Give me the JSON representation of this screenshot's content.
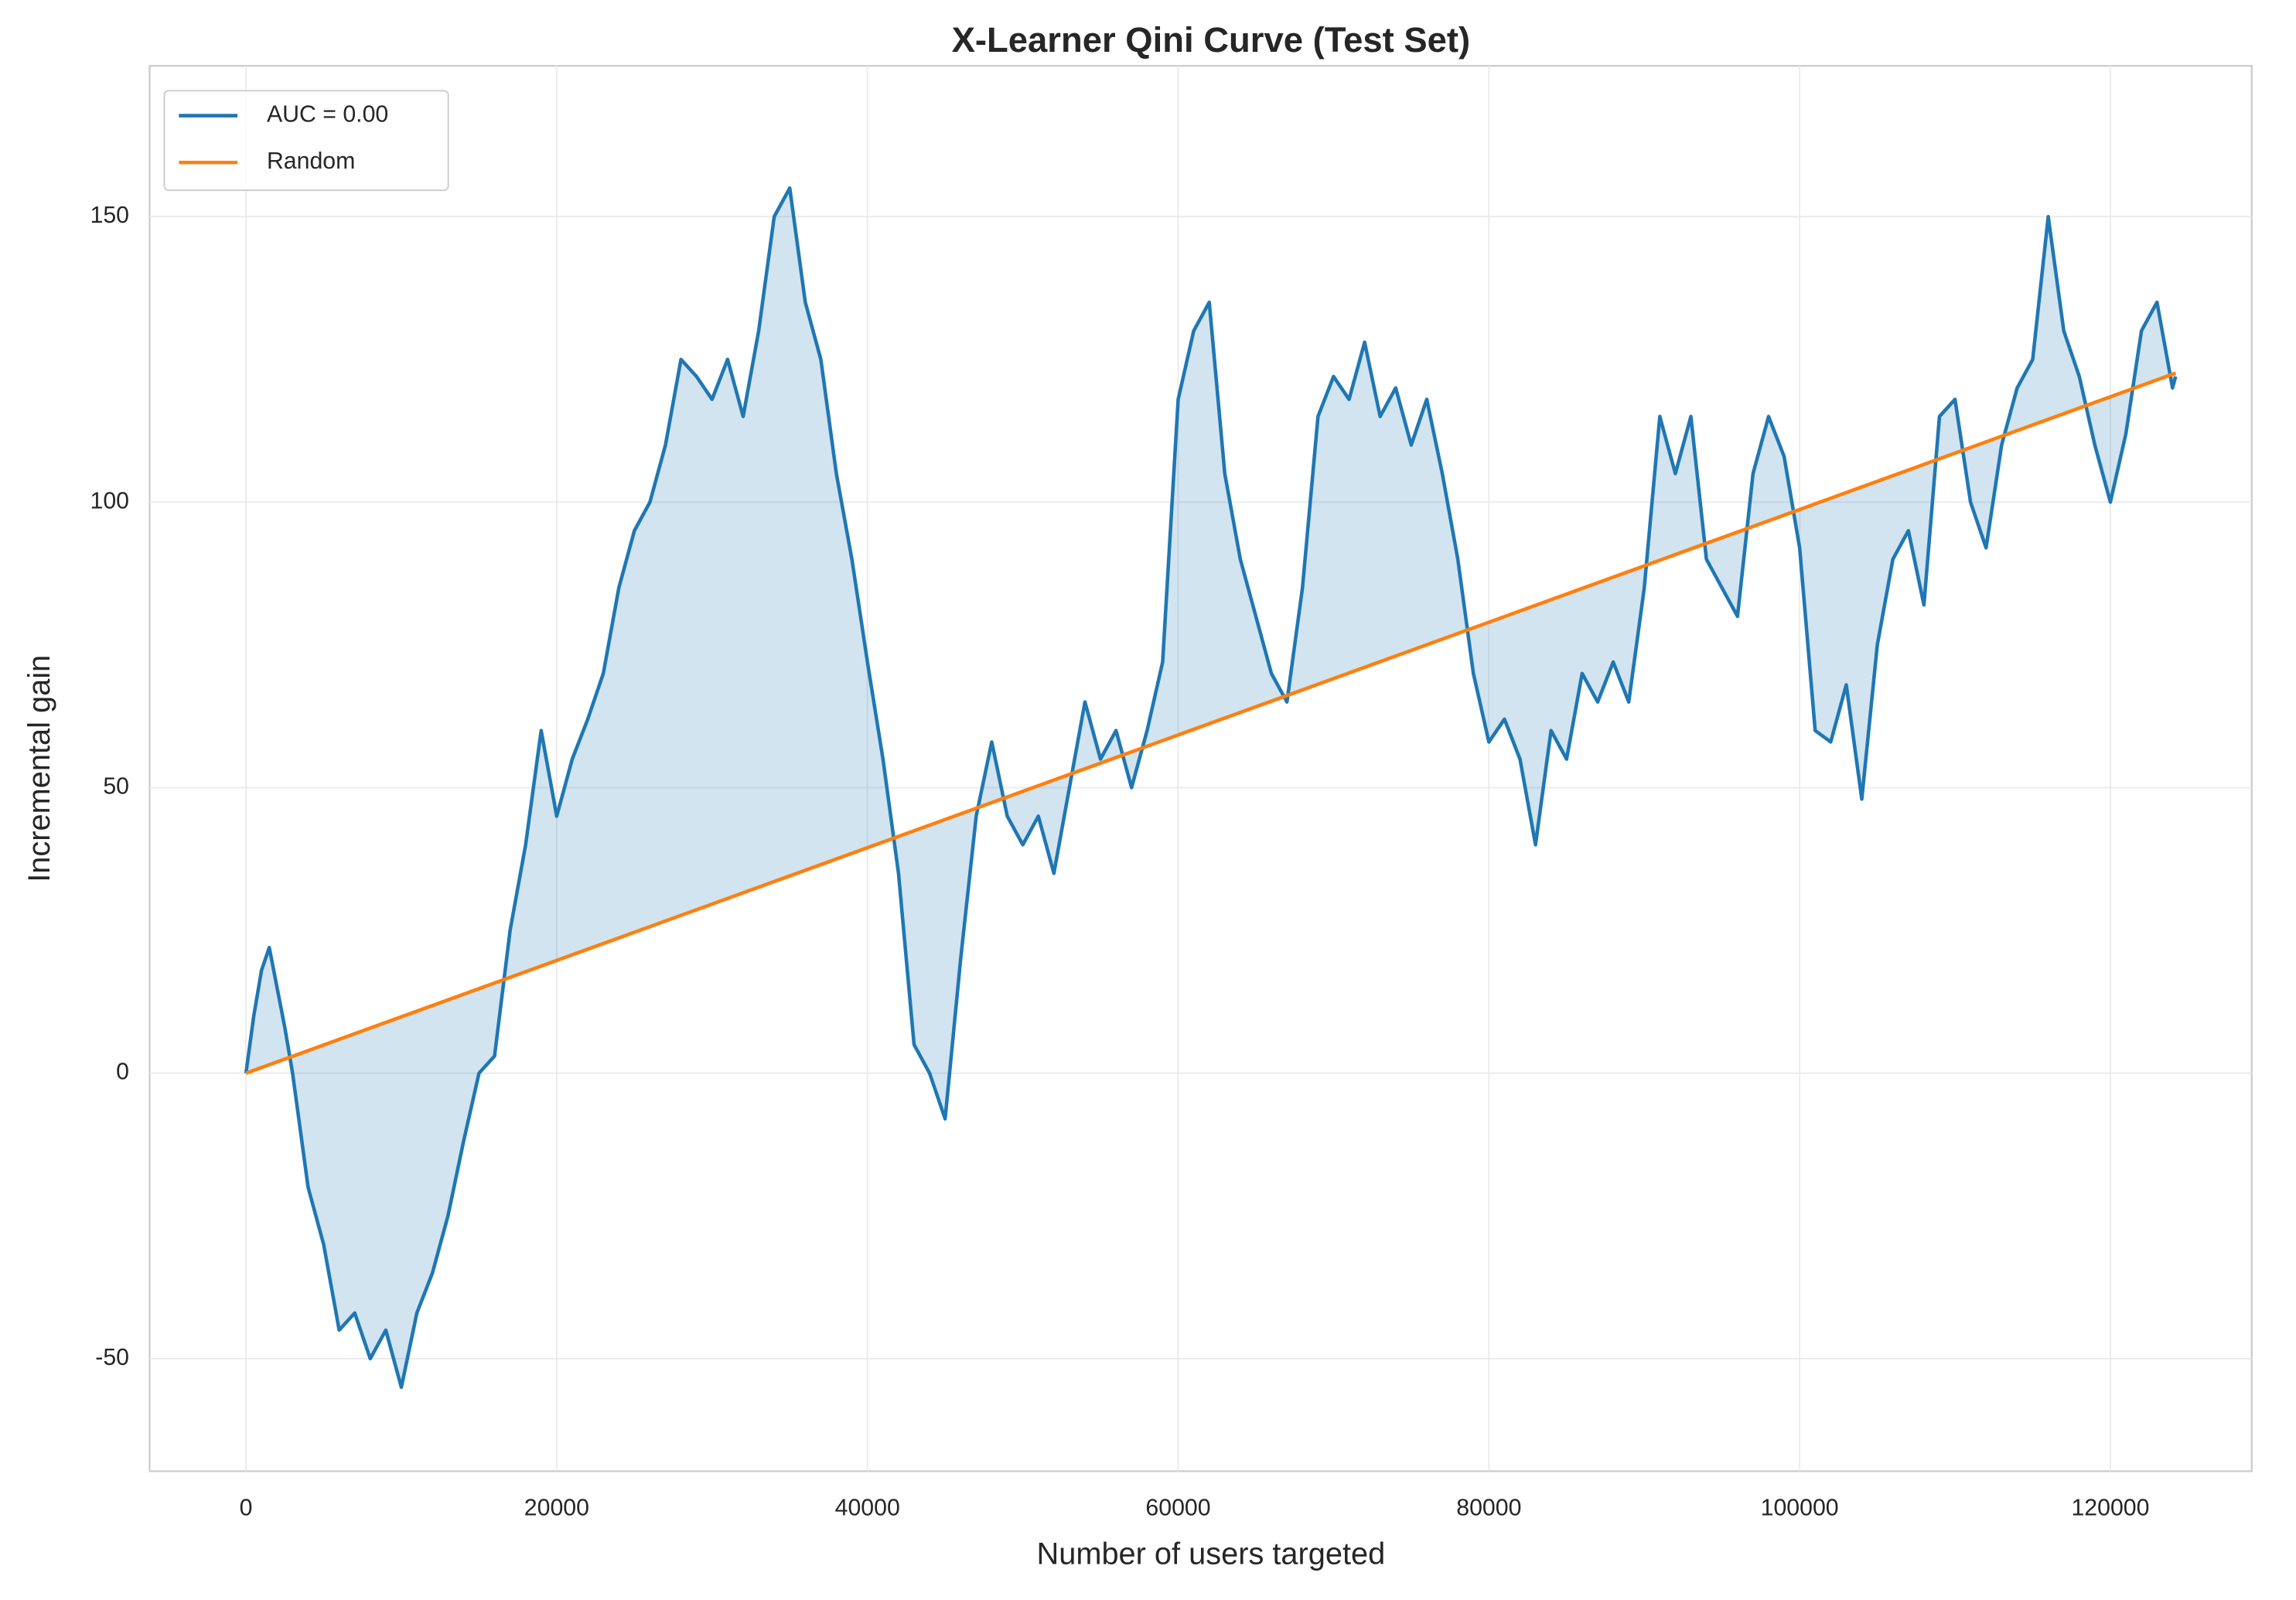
{
  "chart_data": {
    "type": "line",
    "title": "X-Learner Qini Curve (Test Set)",
    "x_label": "Number of users targeted",
    "y_label": "Incremental gain",
    "xlim": [
      -6200,
      129100
    ],
    "ylim": [
      -69.7,
      176.4
    ],
    "xticks": [
      0,
      20000,
      40000,
      60000,
      80000,
      100000,
      120000
    ],
    "yticks": [
      -50,
      0,
      50,
      100,
      150
    ],
    "grid": true,
    "legend": "upper left",
    "fill_between": true,
    "series": [
      {
        "name": "AUC = 0.00",
        "color": "#1f77b4",
        "x": [
          0,
          500,
          1000,
          1500,
          2000,
          2500,
          3000,
          3500,
          4000,
          5000,
          6000,
          7000,
          8000,
          9000,
          10000,
          11000,
          12000,
          13000,
          14000,
          15000,
          16000,
          17000,
          18000,
          19000,
          20000,
          21000,
          22000,
          23000,
          24000,
          25000,
          26000,
          27000,
          28000,
          29000,
          30000,
          31000,
          32000,
          33000,
          34000,
          35000,
          36000,
          37000,
          38000,
          39000,
          40000,
          41000,
          42000,
          43000,
          44000,
          45000,
          46000,
          47000,
          48000,
          49000,
          50000,
          51000,
          52000,
          53000,
          54000,
          55000,
          56000,
          57000,
          58000,
          59000,
          60000,
          61000,
          62000,
          63000,
          64000,
          65000,
          66000,
          67000,
          68000,
          69000,
          70000,
          71000,
          72000,
          73000,
          74000,
          75000,
          76000,
          77000,
          78000,
          79000,
          80000,
          81000,
          82000,
          83000,
          84000,
          85000,
          86000,
          87000,
          88000,
          89000,
          90000,
          91000,
          92000,
          93000,
          94000,
          95000,
          96000,
          97000,
          98000,
          99000,
          100000,
          101000,
          102000,
          103000,
          104000,
          105000,
          106000,
          107000,
          108000,
          109000,
          110000,
          111000,
          112000,
          113000,
          114000,
          115000,
          116000,
          117000,
          118000,
          119000,
          120000,
          121000,
          122000,
          123000,
          124000,
          124200
        ],
        "values": [
          0,
          10,
          18,
          22,
          15,
          8,
          0,
          -10,
          -20,
          -30,
          -45,
          -42,
          -50,
          -45,
          -55,
          -42,
          -35,
          -25,
          -12,
          0,
          3,
          25,
          40,
          60,
          45,
          55,
          62,
          70,
          85,
          95,
          100,
          110,
          125,
          122,
          118,
          125,
          115,
          130,
          150,
          155,
          135,
          125,
          105,
          90,
          72,
          55,
          35,
          5,
          0,
          -8,
          20,
          45,
          58,
          45,
          40,
          45,
          35,
          50,
          65,
          55,
          60,
          50,
          60,
          72,
          118,
          130,
          135,
          105,
          90,
          80,
          70,
          65,
          85,
          115,
          122,
          118,
          128,
          115,
          120,
          110,
          118,
          105,
          90,
          70,
          58,
          62,
          55,
          40,
          60,
          55,
          70,
          65,
          72,
          65,
          85,
          115,
          105,
          115,
          90,
          85,
          80,
          105,
          115,
          108,
          92,
          60,
          58,
          68,
          48,
          75,
          90,
          95,
          82,
          115,
          118,
          100,
          92,
          110,
          120,
          125,
          150,
          130,
          122,
          110,
          100,
          112,
          130,
          135,
          120,
          122
        ]
      },
      {
        "name": "Random",
        "color": "#ff7f0e",
        "x": [
          0,
          124200
        ],
        "values": [
          0,
          122.6
        ]
      }
    ]
  }
}
